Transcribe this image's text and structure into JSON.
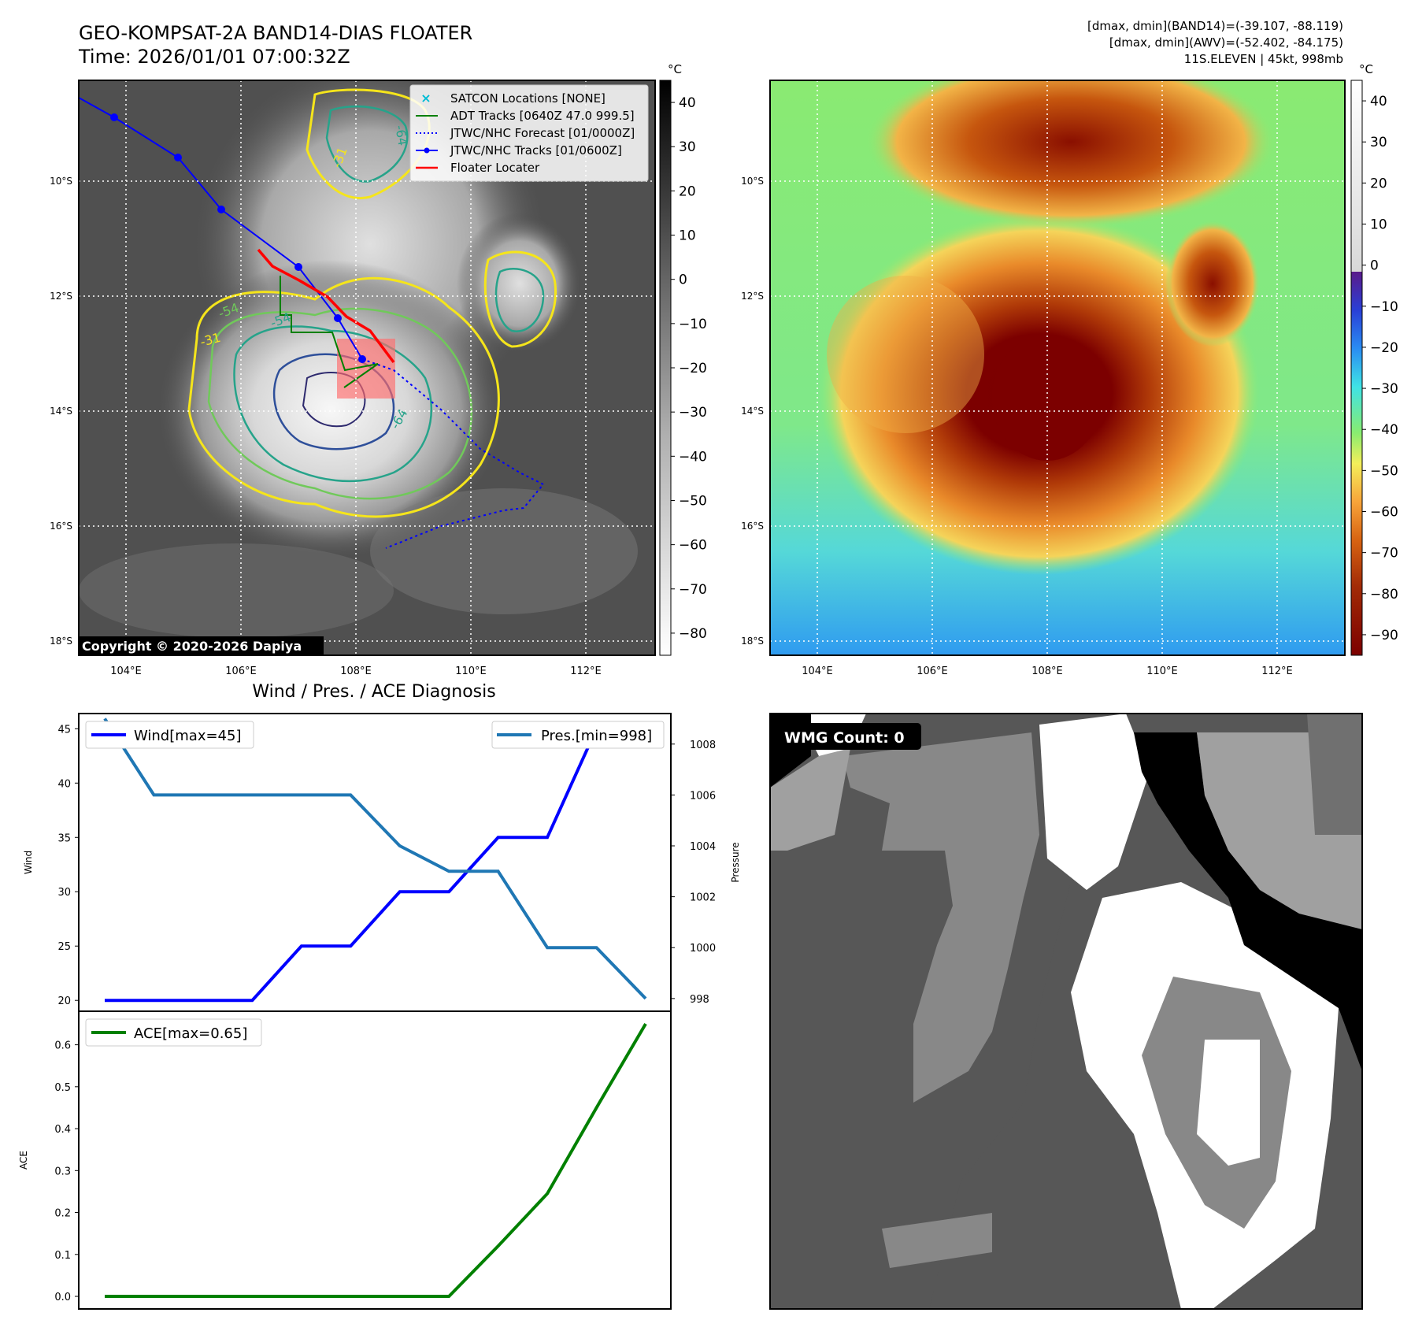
{
  "header": {
    "title": "GEO-KOMPSAT-2A BAND14-DIAS FLOATER",
    "time": "Time: 2026/01/01 07:00:32Z",
    "info_line1": "[dmax, dmin](BAND14)=(-39.107, -88.119)",
    "info_line2": "[dmax, dmin](AWV)=(-52.402, -84.175)",
    "info_line3": "11S.ELEVEN | 45kt, 998mb"
  },
  "colors": {
    "wind": "#0000ff",
    "pressure": "#1f77b4",
    "ace": "#008000",
    "jtwc": "#0000ff",
    "adt": "#008000",
    "floater": "#ff0000",
    "satcon": "#00bcd4"
  },
  "map": {
    "lat_labels": [
      "10°S",
      "12°S",
      "14°S",
      "16°S",
      "18°S"
    ],
    "lon_labels": [
      "104°E",
      "106°E",
      "108°E",
      "110°E",
      "112°E"
    ],
    "copyright": "Copyright © 2020-2026 Dapiya",
    "contour_labels": [
      "-31",
      "-54",
      "-64",
      "-31",
      "-54",
      "-64"
    ],
    "legend": [
      {
        "label": "SATCON Locations [NONE]",
        "icon": "x-marker"
      },
      {
        "label": "ADT Tracks [0640Z 47.0 999.5]",
        "icon": "green-line"
      },
      {
        "label": "JTWC/NHC Forecast [01/0000Z]",
        "icon": "blue-dotted-line"
      },
      {
        "label": "JTWC/NHC Tracks [01/0600Z]",
        "icon": "blue-line-dot"
      },
      {
        "label": "Floater Locater",
        "icon": "red-line"
      }
    ],
    "gray_colorbar": {
      "unit": "°C",
      "ticks": [
        "40",
        "30",
        "20",
        "10",
        "0",
        "−10",
        "−20",
        "−30",
        "−40",
        "−50",
        "−60",
        "−70",
        "−80"
      ]
    },
    "color_colorbar": {
      "unit": "°C",
      "ticks": [
        "40",
        "30",
        "20",
        "10",
        "0",
        "−10",
        "−20",
        "−30",
        "−40",
        "−50",
        "−60",
        "−70",
        "−80",
        "−90"
      ]
    }
  },
  "diagnosis": {
    "title": "Wind / Pres. / ACE Diagnosis",
    "wind_axis_label": "Wind",
    "pressure_axis_label": "Pressure",
    "ace_axis_label": "ACE",
    "wind_legend": "Wind[max=45]",
    "pressure_legend": "Pres.[min=998]",
    "ace_legend": "ACE[max=0.65]"
  },
  "wmg": {
    "label": "WMG Count: 0"
  },
  "chart_data": [
    {
      "type": "line",
      "title": "Wind / Pres. / ACE Diagnosis",
      "x": [
        0,
        1,
        2,
        3,
        4,
        5,
        6,
        7,
        8,
        9,
        10,
        11
      ],
      "series": [
        {
          "name": "Wind[max=45]",
          "axis": "left",
          "values": [
            20,
            20,
            20,
            20,
            25,
            25,
            30,
            30,
            35,
            35,
            45,
            45
          ]
        },
        {
          "name": "Pres.[min=998]",
          "axis": "right",
          "values": [
            1009,
            1006,
            1006,
            1006,
            1006,
            1006,
            1004,
            1003,
            1003,
            1000,
            1000,
            998
          ]
        }
      ],
      "ylabel": "Wind",
      "y2label": "Pressure",
      "yticks": [
        20,
        25,
        30,
        35,
        40,
        45
      ],
      "y2ticks": [
        998,
        1000,
        1002,
        1004,
        1006,
        1008
      ],
      "ylim": [
        19,
        46.4
      ],
      "y2lim": [
        997.5,
        1009.2
      ]
    },
    {
      "type": "line",
      "x": [
        0,
        1,
        2,
        3,
        4,
        5,
        6,
        7,
        8,
        9,
        10,
        11
      ],
      "series": [
        {
          "name": "ACE[max=0.65]",
          "values": [
            0,
            0,
            0,
            0,
            0,
            0,
            0,
            0,
            0.12,
            0.245,
            0.45,
            0.65
          ]
        }
      ],
      "ylabel": "ACE",
      "yticks": [
        0.0,
        0.1,
        0.2,
        0.3,
        0.4,
        0.5,
        0.6
      ],
      "ylim": [
        -0.03,
        0.68
      ]
    }
  ]
}
